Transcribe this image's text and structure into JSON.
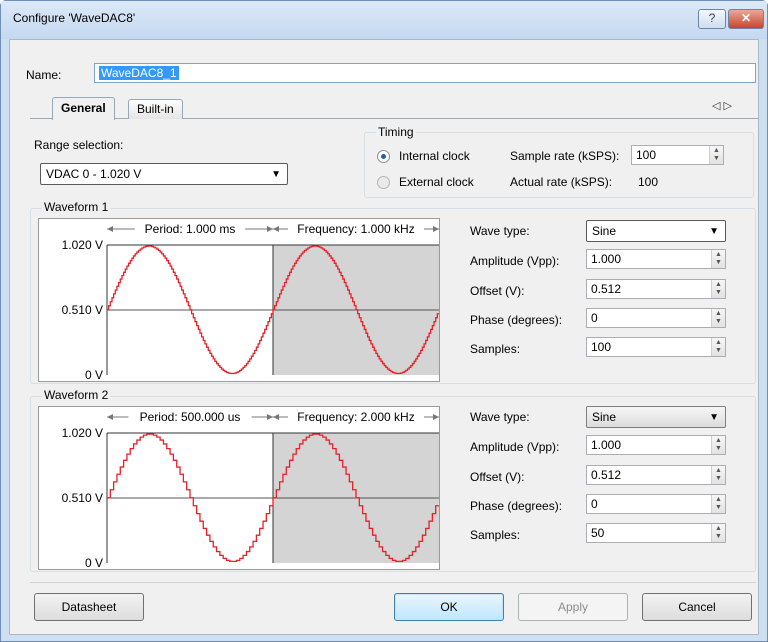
{
  "window": {
    "title": "Configure 'WaveDAC8'",
    "help_label": "?",
    "close_label": "✕"
  },
  "name": {
    "label": "Name:",
    "value": "WaveDAC8_1"
  },
  "tabs": [
    {
      "label": "General"
    },
    {
      "label": "Built-in"
    }
  ],
  "tab_scroll_label": "◁ ▷",
  "range": {
    "label": "Range selection:",
    "value": "VDAC 0 - 1.020 V"
  },
  "timing": {
    "title": "Timing",
    "internal_clock": "Internal clock",
    "external_clock": "External clock",
    "selected_clock": "Internal clock",
    "sample_rate_label": "Sample rate (kSPS):",
    "sample_rate_value": "100",
    "actual_rate_label": "Actual rate (kSPS):",
    "actual_rate_value": "100"
  },
  "waveforms": [
    {
      "title": "Waveform 1",
      "wave_type_label": "Wave type:",
      "wave_type": "Sine",
      "amplitude_label": "Amplitude (Vpp):",
      "amplitude": "1.000",
      "offset_label": "Offset (V):",
      "offset": "0.512",
      "phase_label": "Phase (degrees):",
      "phase": "0",
      "samples_label": "Samples:",
      "samples": "100"
    },
    {
      "title": "Waveform 2",
      "wave_type_label": "Wave type:",
      "wave_type": "Sine",
      "amplitude_label": "Amplitude (Vpp):",
      "amplitude": "1.000",
      "offset_label": "Offset (V):",
      "offset": "0.512",
      "phase_label": "Phase (degrees):",
      "phase": "0",
      "samples_label": "Samples:",
      "samples": "50"
    }
  ],
  "chart_data": [
    {
      "type": "line",
      "title": "",
      "period_label": "Period: 1.000 ms",
      "frequency_label": "Frequency: 1.000 kHz",
      "ytick_labels": [
        "1.020 V",
        "0.510 V",
        "0 V"
      ],
      "ylim": [
        0,
        1.02
      ],
      "x_periods": 2,
      "amplitude_vpp": 1.0,
      "offset_v": 0.512,
      "samples_per_period": 100,
      "series": [
        {
          "color": "#e8202a",
          "shape": "sine"
        }
      ],
      "colors": {
        "second_period_bg": "#d4d4d4",
        "line": "#e8202a"
      }
    },
    {
      "type": "line",
      "title": "",
      "period_label": "Period: 500.000 us",
      "frequency_label": "Frequency: 2.000 kHz",
      "ytick_labels": [
        "1.020 V",
        "0.510 V",
        "0 V"
      ],
      "ylim": [
        0,
        1.02
      ],
      "x_periods": 2,
      "amplitude_vpp": 1.0,
      "offset_v": 0.512,
      "samples_per_period": 50,
      "series": [
        {
          "color": "#e8202a",
          "shape": "sine-staircase"
        }
      ],
      "colors": {
        "second_period_bg": "#d4d4d4",
        "line": "#e8202a"
      }
    }
  ],
  "buttons": {
    "datasheet": "Datasheet",
    "ok": "OK",
    "apply": "Apply",
    "cancel": "Cancel"
  }
}
